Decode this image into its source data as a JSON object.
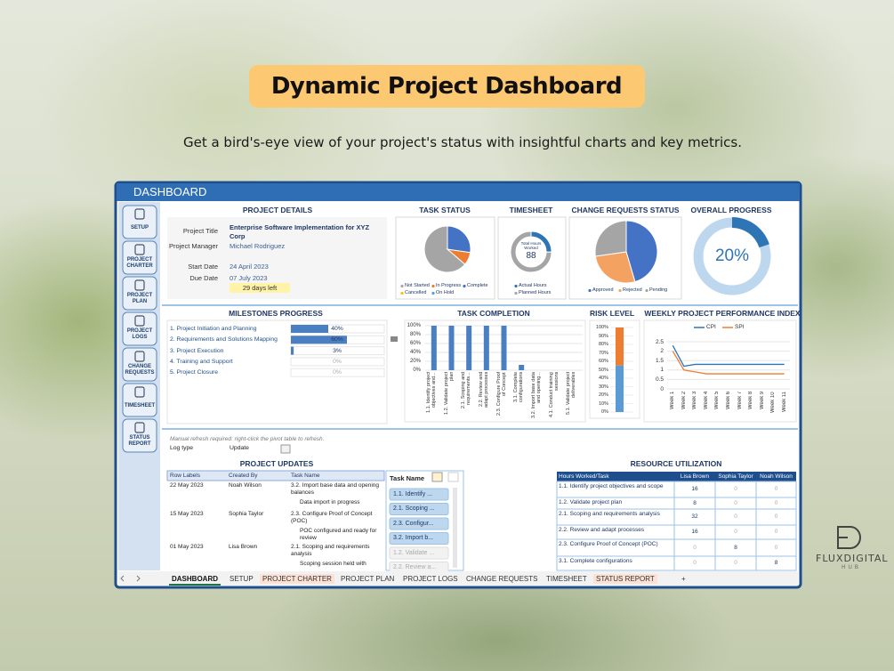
{
  "header": {
    "title": "Dynamic Project Dashboard",
    "subtitle": "Get a bird's-eye view of your project's status with insightful charts and key metrics."
  },
  "dashboard": {
    "title": "DASHBOARD",
    "nav": [
      "SETUP",
      "PROJECT CHARTER",
      "PROJECT PLAN",
      "PROJECT LOGS",
      "CHANGE REQUESTS",
      "TIMESHEET",
      "STATUS REPORT"
    ],
    "project_details": {
      "title": "PROJECT DETAILS",
      "fields": [
        {
          "label": "Project Title",
          "value": "Enterprise Software Implementation for XYZ Corp"
        },
        {
          "label": "Project Manager",
          "value": "Michael Rodriguez"
        },
        {
          "label": "Start Date",
          "value": "24 April 2023"
        },
        {
          "label": "Due Date",
          "value": "07 July 2023"
        }
      ],
      "days_left": "29 days left"
    },
    "task_status": {
      "title": "TASK STATUS",
      "type": "pie",
      "categories": [
        "Not Started",
        "In Progress",
        "Complete",
        "Cancelled",
        "On Hold"
      ],
      "values": [
        7,
        1,
        3,
        0,
        0
      ],
      "colors": [
        "#a5a5a5",
        "#ed7d31",
        "#4472c4",
        "#ffc000",
        "#5b9bd5"
      ]
    },
    "timesheet": {
      "title": "TIMESHEET",
      "type": "donut",
      "center_label": "Total Hours Worked",
      "total": 88,
      "categories": [
        "Actual Hours",
        "Planned Hours"
      ],
      "values": [
        88,
        262
      ],
      "colors": [
        "#2e75b6",
        "#a5a5a5"
      ]
    },
    "change_requests": {
      "title": "CHANGE REQUESTS STATUS",
      "type": "pie",
      "categories": [
        "Approved",
        "Rejected",
        "Pending"
      ],
      "values": [
        5,
        3,
        3
      ],
      "colors": [
        "#4472c4",
        "#f4a261",
        "#a5a5a5"
      ]
    },
    "overall_progress": {
      "title": "OVERALL PROGRESS",
      "type": "donut",
      "value": 20,
      "value_label": "20%",
      "ylim": [
        0,
        100
      ],
      "color": "#2e75b6"
    },
    "milestones": {
      "title": "MILESTONES PROGRESS",
      "type": "bar",
      "categories": [
        "1. Project Initiation and Planning",
        "2. Requirements and Solutions Mapping",
        "3. Project Execution",
        "4. Training and Support",
        "5. Project Closure"
      ],
      "values": [
        40,
        60,
        3,
        0,
        0
      ],
      "value_labels": [
        "40%",
        "60%",
        "3%",
        "0%",
        "0%"
      ],
      "xlim": [
        0,
        100
      ],
      "color": "#4a7fc1"
    },
    "task_completion": {
      "title": "TASK COMPLETION",
      "type": "bar",
      "categories": [
        "1.1. Identify project objectives and...",
        "1.2. Validate project plan",
        "2.1. Scoping and requirements...",
        "2.2. Review and adapt processes",
        "2.3. Configure Proof of Concept",
        "3.1. Complete configurations",
        "3.2. Import base data and opening...",
        "4.1. Conduct training sessions",
        "5.1. Validate project deliverables"
      ],
      "values": [
        100,
        100,
        100,
        100,
        100,
        12,
        0,
        0,
        0
      ],
      "color": "#4a7fc1",
      "ylim": [
        0,
        100
      ],
      "yticks": [
        {
          "value": 0,
          "label": "0%"
        },
        {
          "value": 20,
          "label": "20%"
        },
        {
          "value": 40,
          "label": "40%"
        },
        {
          "value": 60,
          "label": "60%"
        },
        {
          "value": 80,
          "label": "80%"
        },
        {
          "value": 100,
          "label": "100%"
        }
      ]
    },
    "risk_level": {
      "title": "RISK LEVEL",
      "type": "stacked-bar",
      "values": [
        55,
        45
      ],
      "colors": [
        "#5b9bd5",
        "#ed7d31"
      ],
      "ylim": [
        0,
        100
      ],
      "yticks": [
        {
          "value": 0,
          "label": "0%"
        },
        {
          "value": 10,
          "label": "10%"
        },
        {
          "value": 20,
          "label": "20%"
        },
        {
          "value": 30,
          "label": "30%"
        },
        {
          "value": 40,
          "label": "40%"
        },
        {
          "value": 50,
          "label": "50%"
        },
        {
          "value": 60,
          "label": "60%"
        },
        {
          "value": 70,
          "label": "70%"
        },
        {
          "value": 80,
          "label": "80%"
        },
        {
          "value": 90,
          "label": "90%"
        },
        {
          "value": 100,
          "label": "100%"
        }
      ]
    },
    "performance": {
      "title": "WEEKLY PROJECT PERFORMANCE INDEX",
      "type": "line",
      "categories": [
        "Week 1",
        "Week 2",
        "Week 3",
        "Week 4",
        "Week 5",
        "Week 6",
        "Week 7",
        "Week 8",
        "Week 9",
        "Week 10",
        "Week 11"
      ],
      "series": [
        {
          "name": "CPI",
          "color": "#2e75b6",
          "values": [
            2.3,
            1.2,
            1.3,
            1.3,
            1.3,
            1.3,
            1.3,
            1.3,
            1.3,
            1.3,
            1.3
          ]
        },
        {
          "name": "SPI",
          "color": "#ed7d31",
          "values": [
            2.0,
            1.0,
            0.9,
            0.8,
            0.8,
            0.8,
            0.8,
            0.8,
            0.8,
            0.8,
            0.8
          ]
        }
      ],
      "ylim": [
        0,
        2.5
      ],
      "yticks": [
        0,
        0.5,
        1,
        1.5,
        2,
        2.5
      ],
      "grid": true
    },
    "project_updates": {
      "note": "Manual refresh required: right-click the pivot table to refresh.",
      "filter_label": "Log type",
      "filter_value": "Update",
      "title": "PROJECT UPDATES",
      "columns": [
        "Row Labels",
        "Created By",
        "Task Name"
      ],
      "rows": [
        {
          "date": "22 May 2023",
          "created_by": "Noah Wilson",
          "task": "3.2. Import base data and opening balances",
          "details": "Data import in progress"
        },
        {
          "date": "15 May 2023",
          "created_by": "Sophia Taylor",
          "task": "2.3. Configure Proof of Concept (POC)",
          "details": "POC configured and ready for review"
        },
        {
          "date": "01 May 2023",
          "created_by": "Lisa Brown",
          "task": "2.1. Scoping and requirements analysis",
          "details": "Scoping session held with"
        }
      ],
      "slicer": {
        "title": "Task Name",
        "items": [
          "1.1. Identify ...",
          "2.1. Scoping ...",
          "2.3. Configur...",
          "3.2. Import b...",
          "1.2. Validate ...",
          "2.2. Review a..."
        ]
      }
    },
    "resource_utilization": {
      "title": "RESOURCE UTILIZATION",
      "columns": [
        "Hours Worked/Task",
        "Lisa Brown",
        "Sophia Taylor",
        "Noah Wilson"
      ],
      "rows": [
        [
          "1.1. Identify project objectives and scope",
          16,
          0,
          0
        ],
        [
          "1.2. Validate project plan",
          8,
          0,
          0
        ],
        [
          "2.1. Scoping and requirements analysis",
          32,
          0,
          0
        ],
        [
          "2.2. Review and adapt processes",
          16,
          0,
          0
        ],
        [
          "2.3. Configure Proof of Concept (POC)",
          0,
          8,
          0
        ],
        [
          "3.1. Complete configurations",
          0,
          0,
          8
        ]
      ]
    },
    "tabs": [
      "DASHBOARD",
      "SETUP",
      "PROJECT CHARTER",
      "PROJECT PLAN",
      "PROJECT LOGS",
      "CHANGE REQUESTS",
      "TIMESHEET",
      "STATUS REPORT",
      "+"
    ]
  },
  "logo": {
    "name": "FLUXDIGITAL",
    "tagline": "HUB"
  }
}
